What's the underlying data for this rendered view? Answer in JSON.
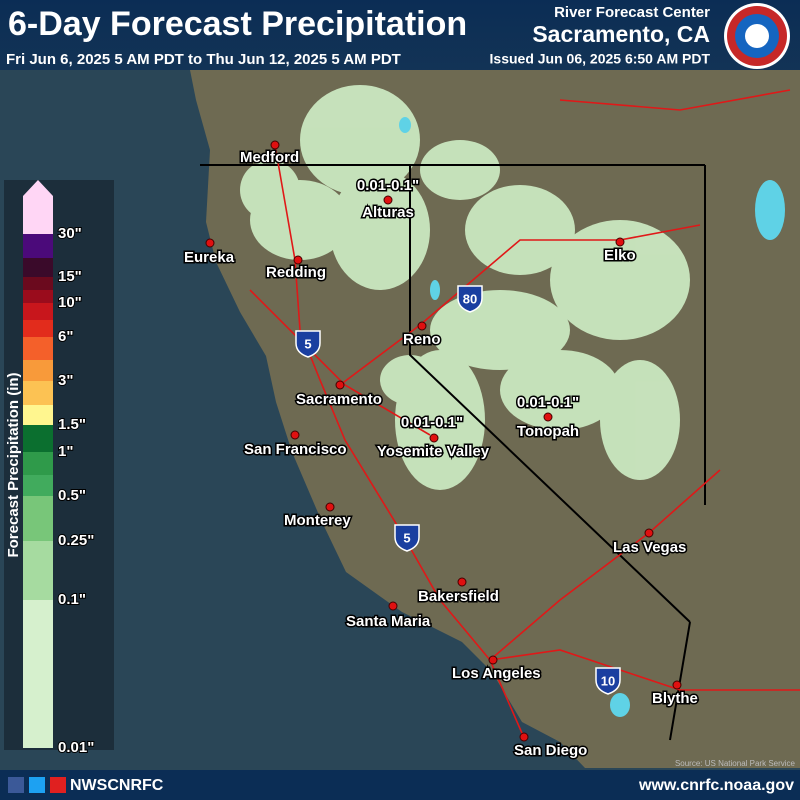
{
  "header": {
    "title": "6-Day Forecast Precipitation",
    "period": "Fri Jun 6, 2025 5 AM PDT to Thu Jun 12, 2025 5 AM PDT",
    "center": "River Forecast Center",
    "location": "Sacramento, CA",
    "issued": "Issued Jun 06, 2025 6:50 AM PDT"
  },
  "legend": {
    "title": "Forecast Precipitation (in)",
    "labels": [
      "30\"",
      "15\"",
      "10\"",
      "6\"",
      "3\"",
      "1.5\"",
      "1\"",
      "0.5\"",
      "0.25\"",
      "0.1\"",
      "0.01\""
    ]
  },
  "map": {
    "cities": [
      "Medford",
      "Alturas",
      "Eureka",
      "Redding",
      "Elko",
      "Reno",
      "Sacramento",
      "Tonopah",
      "San Francisco",
      "Yosemite Valley",
      "Monterey",
      "Las Vegas",
      "Bakersfield",
      "Santa Maria",
      "Los Angeles",
      "Blythe",
      "San Diego"
    ],
    "amounts": [
      "0.01-0.1\"",
      "0.01-0.1\"",
      "0.01-0.1\""
    ],
    "shields": [
      "80",
      "5",
      "5",
      "10"
    ],
    "source": "Source: US National Park Service"
  },
  "footer": {
    "handle": "NWSCNRFC",
    "url": "www.cnrfc.noaa.gov"
  }
}
